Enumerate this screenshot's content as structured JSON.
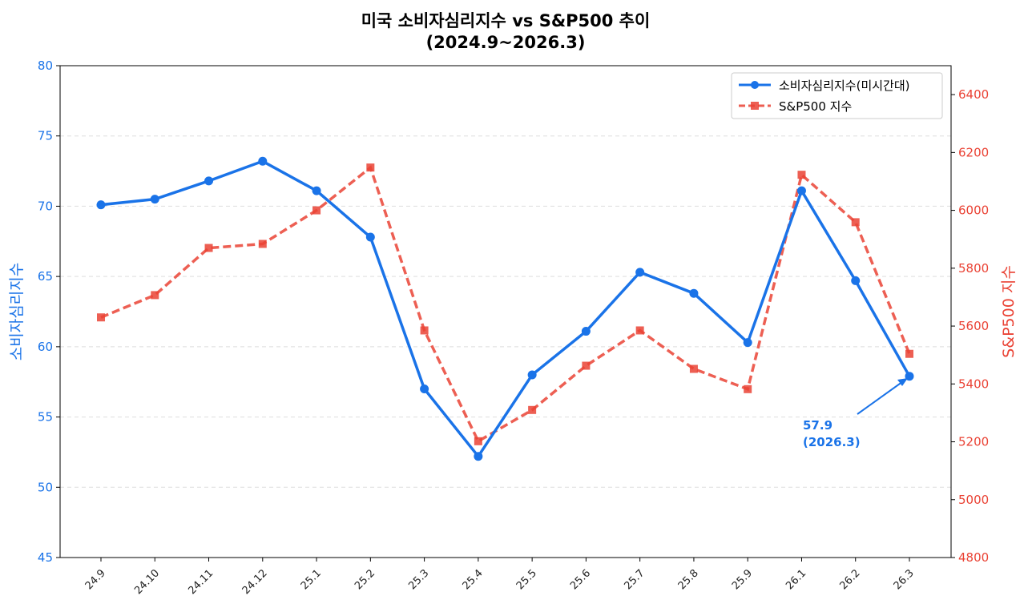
{
  "chart_data": {
    "type": "line",
    "title": "미국 소비자심리지수 vs S&P500 추이",
    "subtitle": "(2024.9~2026.3)",
    "categories": [
      "24.9",
      "24.10",
      "24.11",
      "24.12",
      "25.1",
      "25.2",
      "25.3",
      "25.4",
      "25.5",
      "25.6",
      "25.7",
      "25.8",
      "25.9",
      "26.1",
      "26.2",
      "26.3"
    ],
    "left_axis": {
      "label": "소비자심리지수",
      "ylim": [
        45,
        80
      ],
      "ticks": [
        45,
        50,
        55,
        60,
        65,
        70,
        75,
        80
      ],
      "color": "#1a73e8"
    },
    "right_axis": {
      "label": "S&P500 지수",
      "ylim": [
        4800,
        6500
      ],
      "ticks": [
        4800,
        5000,
        5200,
        5400,
        5600,
        5800,
        6000,
        6200,
        6400
      ],
      "color": "#ea4335"
    },
    "series": [
      {
        "name": "소비자심리지수(미시간대)",
        "axis": "left",
        "color": "#1a73e8",
        "marker": "circle",
        "style": "solid",
        "values": [
          70.1,
          70.5,
          71.8,
          73.2,
          71.1,
          67.8,
          57.0,
          52.2,
          58.0,
          61.1,
          65.3,
          63.8,
          60.3,
          71.1,
          64.7,
          57.9
        ]
      },
      {
        "name": "S&P500 지수",
        "axis": "right",
        "color": "#ea4335",
        "marker": "square",
        "style": "dashed",
        "values": [
          5630,
          5707,
          5870,
          5884,
          6000,
          6148,
          5585,
          5202,
          5310,
          5463,
          5585,
          5452,
          5382,
          6123,
          5959,
          5504
        ]
      }
    ],
    "annotation": {
      "line1": "57.9",
      "line2": "(2026.3)",
      "target": "26.3",
      "color": "#1a73e8"
    },
    "grid": "horizontal dashed",
    "legend": "top-right"
  }
}
